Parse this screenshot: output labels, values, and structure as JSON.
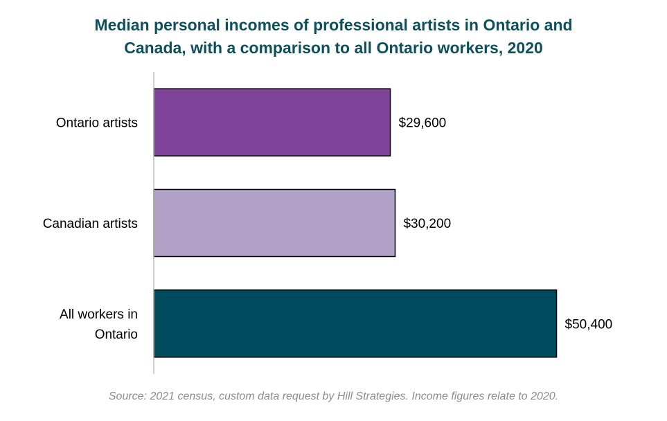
{
  "chart_data": {
    "type": "bar",
    "orientation": "horizontal",
    "title_lines": [
      "Median personal incomes of professional artists in Ontario and",
      "Canada, with a comparison to all Ontario workers, 2020"
    ],
    "categories": [
      [
        "Ontario artists"
      ],
      [
        "Canadian artists"
      ],
      [
        "All workers in",
        "Ontario"
      ]
    ],
    "values": [
      29600,
      30200,
      50400
    ],
    "value_labels": [
      "$29,600",
      "$30,200",
      "$50,400"
    ],
    "bar_colors": [
      "#7f4499",
      "#b1a1c7",
      "#004b5e"
    ],
    "xlim": [
      0,
      52000
    ],
    "grid": false,
    "legend": "none"
  },
  "source": "Source: 2021 census, custom data request by Hill Strategies. Income figures relate to 2020."
}
